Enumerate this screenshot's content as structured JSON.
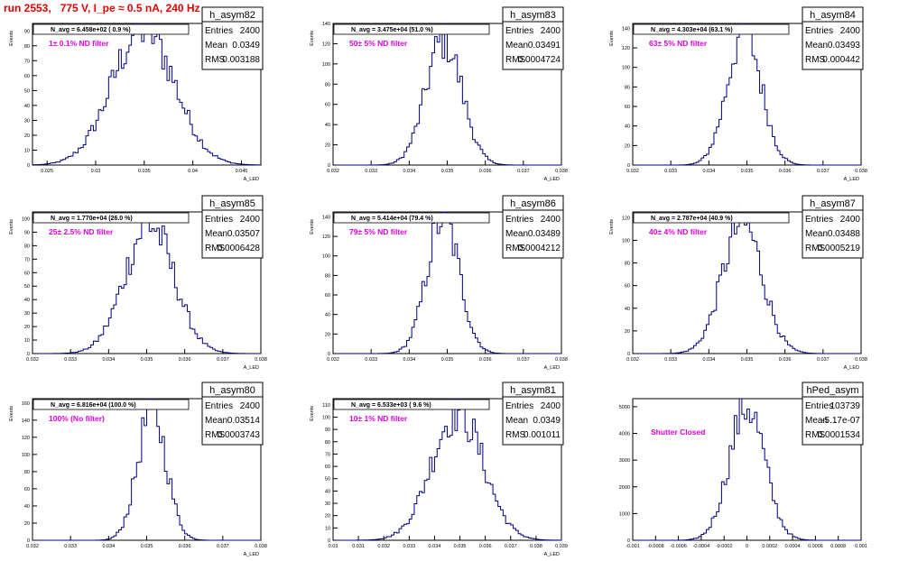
{
  "canvas_title": "run 2553,   775 V, I_pe ≈ 0.5 nA, 240 Hz",
  "chart_data": [
    {
      "type": "histogram",
      "name": "h_asym82",
      "stats": {
        "entries_label": "Entries",
        "entries": "2400",
        "mean_label": "Mean",
        "mean": "0.0349",
        "rms_label": "RMS",
        "rms": "0.003188"
      },
      "navg": "N_avg = 6.458e+02 ( 0.9 %)",
      "filter": "1± 0.1% ND filter",
      "ylabel": "Events",
      "xlabel": "A_LED",
      "xlim": [
        0.0235,
        0.047
      ],
      "xticks": [
        "0.025",
        "0.03",
        "0.035",
        "0.04",
        "0.045"
      ],
      "xtick_values": [
        0.025,
        0.03,
        0.035,
        0.04,
        0.045
      ],
      "ylim": [
        0,
        95
      ],
      "yticks": [
        0,
        10,
        20,
        30,
        40,
        50,
        60,
        70,
        80,
        90
      ],
      "mean_val": 0.0349,
      "sigma": 0.003188,
      "peak": 92
    },
    {
      "type": "histogram",
      "name": "h_asym83",
      "stats": {
        "entries_label": "Entries",
        "entries": "2400",
        "mean_label": "Mean",
        "mean": "0.03491",
        "rms_label": "RMS",
        "rms": "0.0004724"
      },
      "navg": "N_avg = 3.475e+04 (51.0 %)",
      "filter": "50± 5% ND filter",
      "ylabel": "Events",
      "xlabel": "A_LED",
      "xlim": [
        0.032,
        0.038
      ],
      "xticks": [
        "0.032",
        "0.033",
        "0.034",
        "0.035",
        "0.036",
        "0.037",
        "0.038"
      ],
      "xtick_values": [
        0.032,
        0.033,
        0.034,
        0.035,
        0.036,
        0.037,
        0.038
      ],
      "ylim": [
        0,
        140
      ],
      "yticks": [
        0,
        20,
        40,
        60,
        80,
        100,
        120,
        140
      ],
      "mean_val": 0.03491,
      "sigma": 0.0004724,
      "peak": 124
    },
    {
      "type": "histogram",
      "name": "h_asym84",
      "stats": {
        "entries_label": "Entries",
        "entries": "2400",
        "mean_label": "Mean",
        "mean": "0.03493",
        "rms_label": "RMS",
        "rms": "0.000442"
      },
      "navg": "N_avg = 4.303e+04 (63.1 %)",
      "filter": "63± 5% ND filter",
      "ylabel": "Events",
      "xlabel": "A_LED",
      "xlim": [
        0.032,
        0.038
      ],
      "xticks": [
        "0.032",
        "0.033",
        "0.034",
        "0.035",
        "0.036",
        "0.037",
        "0.038"
      ],
      "xtick_values": [
        0.032,
        0.033,
        0.034,
        0.035,
        0.036,
        0.037,
        0.038
      ],
      "ylim": [
        0,
        145
      ],
      "yticks": [
        0,
        20,
        40,
        60,
        80,
        100,
        120,
        140
      ],
      "mean_val": 0.03493,
      "sigma": 0.000442,
      "peak": 138
    },
    {
      "type": "histogram",
      "name": "h_asym85",
      "stats": {
        "entries_label": "Entries",
        "entries": "2400",
        "mean_label": "Mean",
        "mean": "0.03507",
        "rms_label": "RMS",
        "rms": "0.0006428"
      },
      "navg": "N_avg = 1.770e+04 (26.0 %)",
      "filter": "25± 2.5% ND filter",
      "ylabel": "Events",
      "xlabel": "A_LED",
      "xlim": [
        0.032,
        0.038
      ],
      "xticks": [
        "0.032",
        "0.033",
        "0.034",
        "0.035",
        "0.036",
        "0.037",
        "0.038"
      ],
      "xtick_values": [
        0.032,
        0.033,
        0.034,
        0.035,
        0.036,
        0.037,
        0.038
      ],
      "ylim": [
        0,
        105
      ],
      "yticks": [
        0,
        10,
        20,
        30,
        40,
        50,
        60,
        70,
        80,
        90,
        100
      ],
      "mean_val": 0.03507,
      "sigma": 0.0006428,
      "peak": 96
    },
    {
      "type": "histogram",
      "name": "h_asym86",
      "stats": {
        "entries_label": "Entries",
        "entries": "2400",
        "mean_label": "Mean",
        "mean": "0.03489",
        "rms_label": "RMS",
        "rms": "0.0004212"
      },
      "navg": "N_avg = 5.414e+04 (79.4 %)",
      "filter": "79± 5% ND filter",
      "ylabel": "Events",
      "xlabel": "A_LED",
      "xlim": [
        0.032,
        0.038
      ],
      "xticks": [
        "0.032",
        "0.033",
        "0.034",
        "0.035",
        "0.036",
        "0.037",
        "0.038"
      ],
      "xtick_values": [
        0.032,
        0.033,
        0.034,
        0.035,
        0.036,
        0.037,
        0.038
      ],
      "ylim": [
        0,
        145
      ],
      "yticks": [
        0,
        20,
        40,
        60,
        80,
        100,
        120,
        140
      ],
      "mean_val": 0.03489,
      "sigma": 0.0004212,
      "peak": 140
    },
    {
      "type": "histogram",
      "name": "h_asym87",
      "stats": {
        "entries_label": "Entries",
        "entries": "2400",
        "mean_label": "Mean",
        "mean": "0.03488",
        "rms_label": "RMS",
        "rms": "0.0005219"
      },
      "navg": "N_avg = 2.787e+04 (40.9 %)",
      "filter": "40± 4% ND filter",
      "ylabel": "Events",
      "xlabel": "A_LED",
      "xlim": [
        0.032,
        0.038
      ],
      "xticks": [
        "0.032",
        "0.033",
        "0.034",
        "0.035",
        "0.036",
        "0.037",
        "0.038"
      ],
      "xtick_values": [
        0.032,
        0.033,
        0.034,
        0.035,
        0.036,
        0.037,
        0.038
      ],
      "ylim": [
        0,
        125
      ],
      "yticks": [
        0,
        20,
        40,
        60,
        80,
        100,
        120
      ],
      "mean_val": 0.03488,
      "sigma": 0.0005219,
      "peak": 116
    },
    {
      "type": "histogram",
      "name": "h_asym80",
      "stats": {
        "entries_label": "Entries",
        "entries": "2400",
        "mean_label": "Mean",
        "mean": "0.03514",
        "rms_label": "RMS",
        "rms": "0.0003743"
      },
      "navg": "N_avg = 6.816e+04 (100.0 %)",
      "filter": "100% (No filter)",
      "ylabel": "Events",
      "xlabel": "A_LED",
      "xlim": [
        0.032,
        0.038
      ],
      "xticks": [
        "0.032",
        "0.033",
        "0.034",
        "0.035",
        "0.036",
        "0.037",
        "0.038"
      ],
      "xtick_values": [
        0.032,
        0.033,
        0.034,
        0.035,
        0.036,
        0.037,
        0.038
      ],
      "ylim": [
        0,
        165
      ],
      "yticks": [
        0,
        20,
        40,
        60,
        80,
        100,
        120,
        140,
        160
      ],
      "mean_val": 0.03514,
      "sigma": 0.0003743,
      "peak": 152
    },
    {
      "type": "histogram",
      "name": "h_asym81",
      "stats": {
        "entries_label": "Entries",
        "entries": "2400",
        "mean_label": "Mean",
        "mean": "0.0349",
        "rms_label": "RMS",
        "rms": "0.001011"
      },
      "navg": "N_avg = 6.533e+03 ( 9.6 %)",
      "filter": "10± 1% ND filter",
      "ylabel": "Events",
      "xlabel": "A_LED",
      "xlim": [
        0.03,
        0.039
      ],
      "xticks": [
        "0.03",
        "0.031",
        "0.032",
        "0.033",
        "0.034",
        "0.035",
        "0.036",
        "0.037",
        "0.038",
        "0.039"
      ],
      "xtick_values": [
        0.03,
        0.031,
        0.032,
        0.033,
        0.034,
        0.035,
        0.036,
        0.037,
        0.038,
        0.039
      ],
      "ylim": [
        0,
        115
      ],
      "yticks": [
        0,
        10,
        20,
        30,
        40,
        50,
        60,
        70,
        80,
        90,
        100,
        110
      ],
      "mean_val": 0.0349,
      "sigma": 0.001011,
      "peak": 105
    },
    {
      "type": "histogram",
      "name": "hPed_asym",
      "stats": {
        "entries_label": "Entries",
        "entries": "103739",
        "mean_label": "Mean",
        "mean": "-5.17e-07",
        "rms_label": "RMS",
        "rms": "0.0001534"
      },
      "navg": "",
      "filter": "Shutter Closed",
      "ylabel": "",
      "xlabel": "",
      "xlim": [
        -0.001,
        0.001
      ],
      "xticks": [
        "-0.001",
        "-0.0008",
        "-0.0006",
        "-0.0004",
        "-0.0002",
        "0",
        "0.0002",
        "0.0004",
        "0.0006",
        "0.0008",
        "0.001"
      ],
      "xtick_values": [
        -0.001,
        -0.0008,
        -0.0006,
        -0.0004,
        -0.0002,
        0,
        0.0002,
        0.0004,
        0.0006,
        0.0008,
        0.001
      ],
      "ylim": [
        0,
        5300
      ],
      "yticks": [
        0,
        1000,
        2000,
        3000,
        4000,
        5000
      ],
      "mean_val": 0,
      "sigma": 0.0001534,
      "peak": 5050
    }
  ]
}
